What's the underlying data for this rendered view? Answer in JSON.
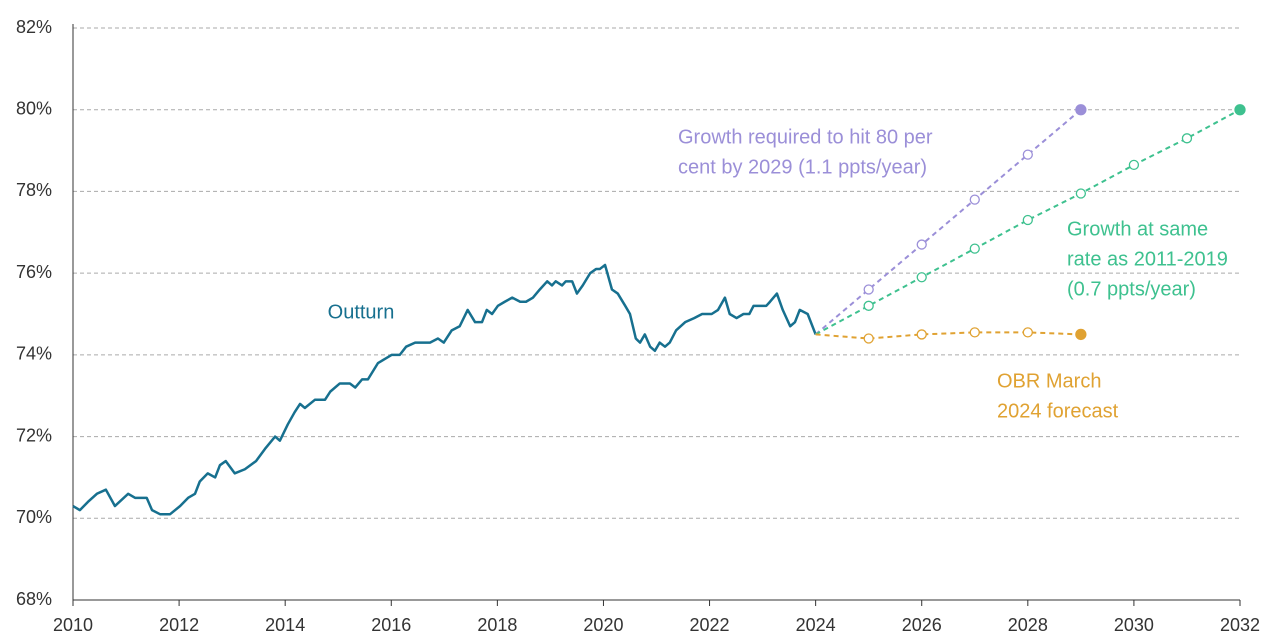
{
  "chart_data": {
    "type": "line",
    "xlim": [
      2010,
      2032
    ],
    "xticks": [
      2010,
      2012,
      2014,
      2016,
      2018,
      2020,
      2022,
      2024,
      2026,
      2028,
      2030,
      2032
    ],
    "ylim": [
      68,
      82
    ],
    "yticks": [
      {
        "value": 68,
        "label": "68%"
      },
      {
        "value": 70,
        "label": "70%"
      },
      {
        "value": 72,
        "label": "72%"
      },
      {
        "value": 74,
        "label": "74%"
      },
      {
        "value": 76,
        "label": "76%"
      },
      {
        "value": 78,
        "label": "78%"
      },
      {
        "value": 80,
        "label": "80%"
      },
      {
        "value": 82,
        "label": "82%"
      }
    ],
    "grid": true,
    "series": [
      {
        "label": [
          "Outturn"
        ],
        "color": "#17708f",
        "dashed": false,
        "markers": false,
        "x": [
          2010.0,
          2010.13,
          2010.28,
          2010.45,
          2010.62,
          2010.79,
          2011.04,
          2011.17,
          2011.39,
          2011.49,
          2011.64,
          2011.83,
          2012.02,
          2012.17,
          2012.3,
          2012.39,
          2012.54,
          2012.68,
          2012.77,
          2012.88,
          2013.05,
          2013.24,
          2013.45,
          2013.62,
          2013.81,
          2013.9,
          2014.05,
          2014.18,
          2014.28,
          2014.37,
          2014.56,
          2014.75,
          2014.85,
          2015.03,
          2015.22,
          2015.32,
          2015.45,
          2015.56,
          2015.75,
          2015.88,
          2016.01,
          2016.16,
          2016.28,
          2016.45,
          2016.73,
          2016.88,
          2016.99,
          2017.14,
          2017.29,
          2017.44,
          2017.58,
          2017.71,
          2017.8,
          2017.9,
          2018.01,
          2018.14,
          2018.28,
          2018.43,
          2018.54,
          2018.67,
          2018.8,
          2018.94,
          2019.03,
          2019.1,
          2019.22,
          2019.29,
          2019.41,
          2019.5,
          2019.61,
          2019.75,
          2019.86,
          2019.93,
          2020.03,
          2020.16,
          2020.27,
          2020.41,
          2020.5,
          2020.61,
          2020.69,
          2020.78,
          2020.88,
          2020.97,
          2021.06,
          2021.16,
          2021.25,
          2021.37,
          2021.54,
          2021.71,
          2021.86,
          2022.04,
          2022.16,
          2022.29,
          2022.38,
          2022.51,
          2022.64,
          2022.75,
          2022.83,
          2023.07,
          2023.14,
          2023.27,
          2023.38,
          2023.52,
          2023.61,
          2023.7,
          2023.85,
          2024.0
        ],
        "values": [
          70.3,
          70.2,
          70.4,
          70.6,
          70.7,
          70.3,
          70.6,
          70.5,
          70.5,
          70.2,
          70.1,
          70.1,
          70.3,
          70.5,
          70.6,
          70.9,
          71.1,
          71.0,
          71.3,
          71.4,
          71.1,
          71.2,
          71.4,
          71.7,
          72.0,
          71.9,
          72.3,
          72.6,
          72.8,
          72.7,
          72.9,
          72.9,
          73.1,
          73.3,
          73.3,
          73.2,
          73.4,
          73.4,
          73.8,
          73.9,
          74.0,
          74.0,
          74.2,
          74.3,
          74.3,
          74.4,
          74.3,
          74.6,
          74.7,
          75.1,
          74.8,
          74.8,
          75.1,
          75.0,
          75.2,
          75.3,
          75.4,
          75.3,
          75.3,
          75.4,
          75.6,
          75.8,
          75.7,
          75.8,
          75.7,
          75.8,
          75.8,
          75.5,
          75.7,
          76.0,
          76.1,
          76.1,
          76.2,
          75.6,
          75.5,
          75.2,
          75.0,
          74.4,
          74.3,
          74.5,
          74.2,
          74.1,
          74.3,
          74.2,
          74.3,
          74.6,
          74.8,
          74.9,
          75.0,
          75.0,
          75.1,
          75.4,
          75.0,
          74.9,
          75.0,
          75.0,
          75.2,
          75.2,
          75.3,
          75.5,
          75.1,
          74.7,
          74.8,
          75.1,
          75.0,
          74.5
        ]
      },
      {
        "label": [
          "Growth required to hit 80 per",
          "cent by 2029 (1.1 ppts/year)"
        ],
        "color": "#9b8fd8",
        "dashed": true,
        "markers": true,
        "x": [
          2024,
          2025,
          2026,
          2027,
          2028,
          2029
        ],
        "values": [
          74.5,
          75.6,
          76.7,
          77.8,
          78.9,
          80.0
        ]
      },
      {
        "label": [
          "Growth at same",
          "rate as 2011-2019",
          "(0.7 ppts/year)"
        ],
        "color": "#3ec18f",
        "dashed": true,
        "markers": true,
        "x": [
          2024,
          2025,
          2026,
          2027,
          2028,
          2029,
          2030,
          2031,
          2032
        ],
        "values": [
          74.5,
          75.2,
          75.9,
          76.6,
          77.3,
          77.95,
          78.65,
          79.3,
          80.0
        ]
      },
      {
        "label": [
          "OBR March",
          "2024 forecast"
        ],
        "color": "#e0a232",
        "dashed": true,
        "markers": true,
        "x": [
          2024,
          2025,
          2026,
          2027,
          2028,
          2029
        ],
        "values": [
          74.5,
          74.4,
          74.5,
          74.55,
          74.55,
          74.5
        ]
      }
    ]
  }
}
